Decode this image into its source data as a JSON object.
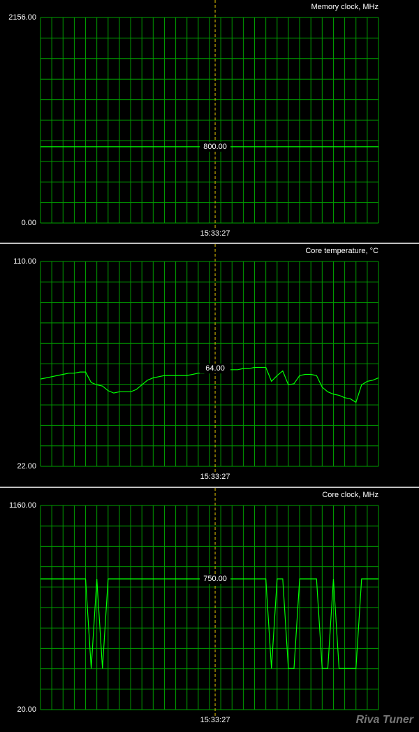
{
  "chart_data": [
    {
      "type": "line",
      "title": "Memory clock, MHz",
      "color": "#00ff00",
      "categories": [
        null,
        null,
        null,
        null,
        null,
        null,
        null,
        null,
        null,
        null,
        null,
        null,
        null,
        null,
        null,
        null,
        null,
        null,
        null,
        null,
        null,
        null,
        null,
        null,
        null,
        null,
        null,
        null,
        null,
        null,
        null,
        "15:33:27",
        null,
        null,
        null,
        null,
        null,
        null,
        null,
        null,
        null,
        null,
        null,
        null,
        null,
        null,
        null,
        null,
        null,
        null,
        null,
        null,
        null,
        null,
        null,
        null,
        null,
        null,
        null,
        null,
        null
      ],
      "values": [
        800,
        800,
        800,
        800,
        800,
        800,
        800,
        800,
        800,
        800,
        800,
        800,
        800,
        800,
        800,
        800,
        800,
        800,
        800,
        800,
        800,
        800,
        800,
        800,
        800,
        800,
        800,
        800,
        800,
        800,
        800,
        800,
        800,
        800,
        800,
        800,
        800,
        800,
        800,
        800,
        800,
        800,
        800,
        800,
        800,
        800,
        800,
        800,
        800,
        800,
        800,
        800,
        800,
        800,
        800,
        800,
        800,
        800,
        800,
        800,
        800
      ],
      "value_labels": [
        null,
        null,
        null,
        null,
        null,
        null,
        null,
        null,
        null,
        null,
        null,
        null,
        null,
        null,
        null,
        null,
        null,
        null,
        null,
        null,
        null,
        null,
        null,
        null,
        null,
        null,
        null,
        null,
        null,
        null,
        null,
        "800.00",
        null,
        null,
        null,
        null,
        null,
        null,
        null,
        null,
        null,
        null,
        null,
        null,
        null,
        null,
        null,
        null,
        null,
        null,
        null,
        null,
        null,
        null,
        null,
        null,
        null,
        null,
        null,
        null,
        null
      ],
      "ylim": [
        0,
        2156
      ],
      "yticks": [
        {
          "value": 0,
          "label": "0.00"
        },
        {
          "value": 2156,
          "label": "2156.00"
        }
      ],
      "grid": true
    },
    {
      "type": "line",
      "title": "Core temperature, °C",
      "color": "#00ff00",
      "categories": [
        null,
        null,
        null,
        null,
        null,
        null,
        null,
        null,
        null,
        null,
        null,
        null,
        null,
        null,
        null,
        null,
        null,
        null,
        null,
        null,
        null,
        null,
        null,
        null,
        null,
        null,
        null,
        null,
        null,
        null,
        null,
        "15:33:27",
        null,
        null,
        null,
        null,
        null,
        null,
        null,
        null,
        null,
        null,
        null,
        null,
        null,
        null,
        null,
        null,
        null,
        null,
        null,
        null,
        null,
        null,
        null,
        null,
        null,
        null,
        null,
        null,
        null
      ],
      "values": [
        59.5,
        60,
        60.5,
        61,
        61.5,
        62,
        62,
        62.5,
        62.5,
        58,
        57,
        56.5,
        54.5,
        53.5,
        54,
        54,
        54,
        55,
        57,
        59,
        60,
        60.5,
        61,
        61,
        61,
        61,
        61,
        61.5,
        62,
        62,
        63,
        64,
        63.5,
        63.5,
        63.5,
        63.5,
        64,
        64,
        64.5,
        64.5,
        64.5,
        58.5,
        61,
        63,
        57,
        57.5,
        61,
        61.5,
        61.5,
        61,
        56,
        54,
        53,
        52.5,
        51.5,
        51,
        49.5,
        57,
        58.5,
        59,
        60
      ],
      "value_labels": [
        null,
        null,
        null,
        null,
        null,
        null,
        null,
        null,
        null,
        null,
        null,
        null,
        null,
        null,
        null,
        null,
        null,
        null,
        null,
        null,
        null,
        null,
        null,
        null,
        null,
        null,
        null,
        null,
        null,
        null,
        null,
        "64.00",
        null,
        null,
        null,
        null,
        null,
        null,
        null,
        null,
        null,
        null,
        null,
        null,
        null,
        null,
        null,
        null,
        null,
        null,
        null,
        null,
        null,
        null,
        null,
        null,
        null,
        null,
        null,
        null,
        null
      ],
      "ylim": [
        22,
        110
      ],
      "yticks": [
        {
          "value": 22,
          "label": "22.00"
        },
        {
          "value": 110,
          "label": "110.00"
        }
      ],
      "grid": true
    },
    {
      "type": "line",
      "title": "Core clock, MHz",
      "color": "#00ff00",
      "categories": [
        null,
        null,
        null,
        null,
        null,
        null,
        null,
        null,
        null,
        null,
        null,
        null,
        null,
        null,
        null,
        null,
        null,
        null,
        null,
        null,
        null,
        null,
        null,
        null,
        null,
        null,
        null,
        null,
        null,
        null,
        null,
        "15:33:27",
        null,
        null,
        null,
        null,
        null,
        null,
        null,
        null,
        null,
        null,
        null,
        null,
        null,
        null,
        null,
        null,
        null,
        null,
        null,
        null,
        null,
        null,
        null,
        null,
        null,
        null,
        null,
        null,
        null
      ],
      "values": [
        750,
        750,
        750,
        750,
        750,
        750,
        750,
        750,
        750,
        250,
        750,
        250,
        750,
        750,
        750,
        750,
        750,
        750,
        750,
        750,
        750,
        750,
        750,
        750,
        750,
        750,
        750,
        750,
        750,
        750,
        750,
        750,
        750,
        750,
        750,
        750,
        750,
        750,
        750,
        750,
        750,
        250,
        750,
        750,
        250,
        250,
        750,
        750,
        750,
        750,
        250,
        250,
        750,
        250,
        250,
        250,
        250,
        750,
        750,
        750,
        750
      ],
      "value_labels": [
        null,
        null,
        null,
        null,
        null,
        null,
        null,
        null,
        null,
        null,
        null,
        null,
        null,
        null,
        null,
        null,
        null,
        null,
        null,
        null,
        null,
        null,
        null,
        null,
        null,
        null,
        null,
        null,
        null,
        null,
        null,
        "750.00",
        null,
        null,
        null,
        null,
        null,
        null,
        null,
        null,
        null,
        null,
        null,
        null,
        null,
        null,
        null,
        null,
        null,
        null,
        null,
        null,
        null,
        null,
        null,
        null,
        null,
        null,
        null,
        null,
        null
      ],
      "ylim": [
        20,
        1160
      ],
      "yticks": [
        {
          "value": 20,
          "label": "20.00"
        },
        {
          "value": 1160,
          "label": "1160.00"
        }
      ],
      "grid": true
    }
  ],
  "logo": "Riva Tuner"
}
